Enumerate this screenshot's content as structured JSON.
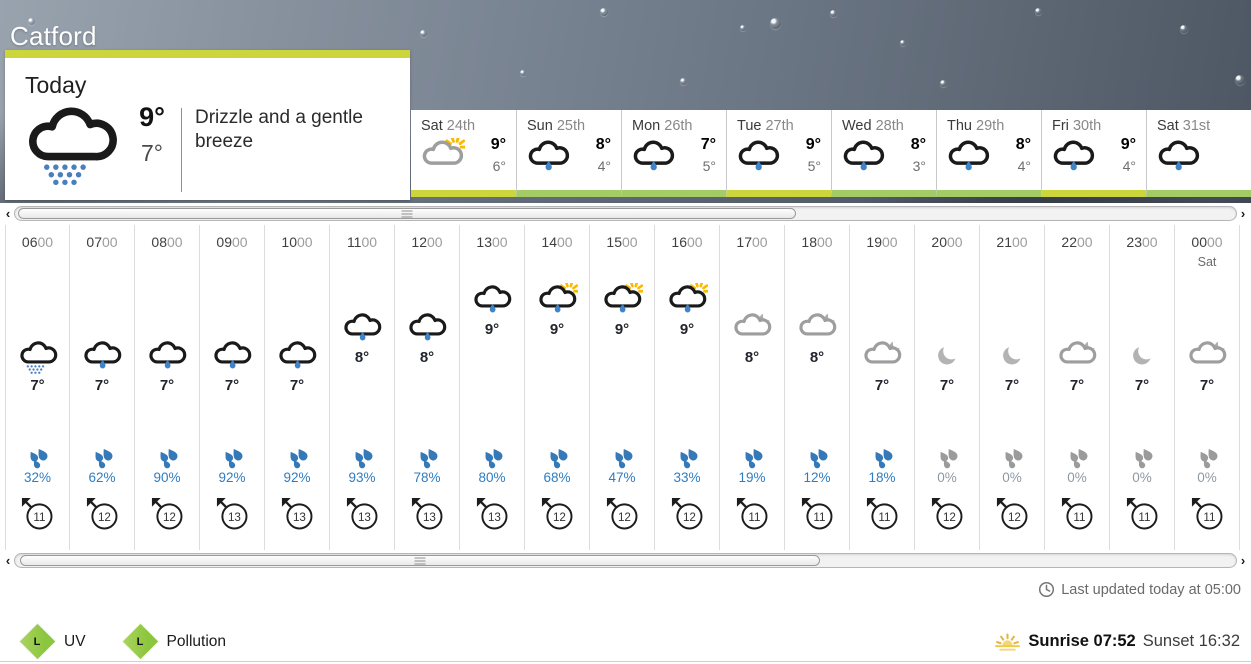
{
  "location": "Catford",
  "today": {
    "label": "Today",
    "high": "9°",
    "low": "7°",
    "summary": "Drizzle and a gentle breeze",
    "icon": "drizzle-day"
  },
  "day_tabs": [
    {
      "day": "Sat",
      "date": "24th",
      "high": "9°",
      "low": "6°",
      "icon": "sunny-intervals",
      "accent": "lime"
    },
    {
      "day": "Sun",
      "date": "25th",
      "high": "8°",
      "low": "4°",
      "icon": "light-rain",
      "accent": "green"
    },
    {
      "day": "Mon",
      "date": "26th",
      "high": "7°",
      "low": "5°",
      "icon": "light-rain",
      "accent": "green"
    },
    {
      "day": "Tue",
      "date": "27th",
      "high": "9°",
      "low": "5°",
      "icon": "light-rain",
      "accent": "lime"
    },
    {
      "day": "Wed",
      "date": "28th",
      "high": "8°",
      "low": "3°",
      "icon": "light-rain",
      "accent": "green"
    },
    {
      "day": "Thu",
      "date": "29th",
      "high": "8°",
      "low": "4°",
      "icon": "light-rain",
      "accent": "green"
    },
    {
      "day": "Fri",
      "date": "30th",
      "high": "9°",
      "low": "4°",
      "icon": "light-rain",
      "accent": "lime"
    },
    {
      "day": "Sat",
      "date": "31st",
      "high": "",
      "low": "",
      "icon": "light-rain",
      "accent": "green"
    }
  ],
  "hours": [
    {
      "time": "0600",
      "sub": "",
      "temp": 7,
      "temp_label": "7°",
      "icon": "drizzle-day",
      "precip": "32%",
      "precip_active": true,
      "wind": "11"
    },
    {
      "time": "0700",
      "sub": "",
      "temp": 7,
      "temp_label": "7°",
      "icon": "light-rain",
      "precip": "62%",
      "precip_active": true,
      "wind": "12"
    },
    {
      "time": "0800",
      "sub": "",
      "temp": 7,
      "temp_label": "7°",
      "icon": "light-rain",
      "precip": "90%",
      "precip_active": true,
      "wind": "12"
    },
    {
      "time": "0900",
      "sub": "",
      "temp": 7,
      "temp_label": "7°",
      "icon": "light-rain",
      "precip": "92%",
      "precip_active": true,
      "wind": "13"
    },
    {
      "time": "1000",
      "sub": "",
      "temp": 7,
      "temp_label": "7°",
      "icon": "light-rain",
      "precip": "92%",
      "precip_active": true,
      "wind": "13"
    },
    {
      "time": "1100",
      "sub": "",
      "temp": 8,
      "temp_label": "8°",
      "icon": "light-rain",
      "precip": "93%",
      "precip_active": true,
      "wind": "13"
    },
    {
      "time": "1200",
      "sub": "",
      "temp": 8,
      "temp_label": "8°",
      "icon": "light-rain",
      "precip": "78%",
      "precip_active": true,
      "wind": "13"
    },
    {
      "time": "1300",
      "sub": "",
      "temp": 9,
      "temp_label": "9°",
      "icon": "light-rain",
      "precip": "80%",
      "precip_active": true,
      "wind": "13"
    },
    {
      "time": "1400",
      "sub": "",
      "temp": 9,
      "temp_label": "9°",
      "icon": "rain-shower-day",
      "precip": "68%",
      "precip_active": true,
      "wind": "12"
    },
    {
      "time": "1500",
      "sub": "",
      "temp": 9,
      "temp_label": "9°",
      "icon": "rain-shower-day",
      "precip": "47%",
      "precip_active": true,
      "wind": "12"
    },
    {
      "time": "1600",
      "sub": "",
      "temp": 9,
      "temp_label": "9°",
      "icon": "rain-shower-day",
      "precip": "33%",
      "precip_active": true,
      "wind": "12"
    },
    {
      "time": "1700",
      "sub": "",
      "temp": 8,
      "temp_label": "8°",
      "icon": "cloud-moon",
      "precip": "19%",
      "precip_active": true,
      "wind": "11"
    },
    {
      "time": "1800",
      "sub": "",
      "temp": 8,
      "temp_label": "8°",
      "icon": "cloud-moon",
      "precip": "12%",
      "precip_active": true,
      "wind": "11"
    },
    {
      "time": "1900",
      "sub": "",
      "temp": 7,
      "temp_label": "7°",
      "icon": "cloud-moon",
      "precip": "18%",
      "precip_active": true,
      "wind": "11"
    },
    {
      "time": "2000",
      "sub": "",
      "temp": 7,
      "temp_label": "7°",
      "icon": "moon",
      "precip": "0%",
      "precip_active": false,
      "wind": "12"
    },
    {
      "time": "2100",
      "sub": "",
      "temp": 7,
      "temp_label": "7°",
      "icon": "moon",
      "precip": "0%",
      "precip_active": false,
      "wind": "12"
    },
    {
      "time": "2200",
      "sub": "",
      "temp": 7,
      "temp_label": "7°",
      "icon": "cloud-moon",
      "precip": "0%",
      "precip_active": false,
      "wind": "11"
    },
    {
      "time": "2300",
      "sub": "",
      "temp": 7,
      "temp_label": "7°",
      "icon": "moon",
      "precip": "0%",
      "precip_active": false,
      "wind": "11"
    },
    {
      "time": "0000",
      "sub": "Sat",
      "temp": 7,
      "temp_label": "7°",
      "icon": "cloud-moon",
      "precip": "0%",
      "precip_active": false,
      "wind": "11"
    }
  ],
  "scrollbar": {
    "left_arrow": "‹",
    "right_arrow": "›"
  },
  "updated": "Last updated today at 05:00",
  "environment": {
    "uv": {
      "level": "L",
      "label": "UV"
    },
    "pollution": {
      "level": "L",
      "label": "Pollution"
    }
  },
  "sun": {
    "sunrise_label": "Sunrise",
    "sunrise_time": "07:52",
    "sunset_label": "Sunset",
    "sunset_time": "16:32"
  },
  "colors": {
    "lime": "#ccd53c",
    "green": "#a4cc64",
    "precip_blue": "#2e7dc2",
    "precip_grey": "#9b9b9b",
    "precip_grey_text": "#8d99a3",
    "rain_drop": "#3f83c9",
    "sun_ray": "#fbba00",
    "cloud_dark": "#1a1a1a",
    "cloud_grey": "#9e9e9e",
    "badge_green": "#8cc63e"
  }
}
